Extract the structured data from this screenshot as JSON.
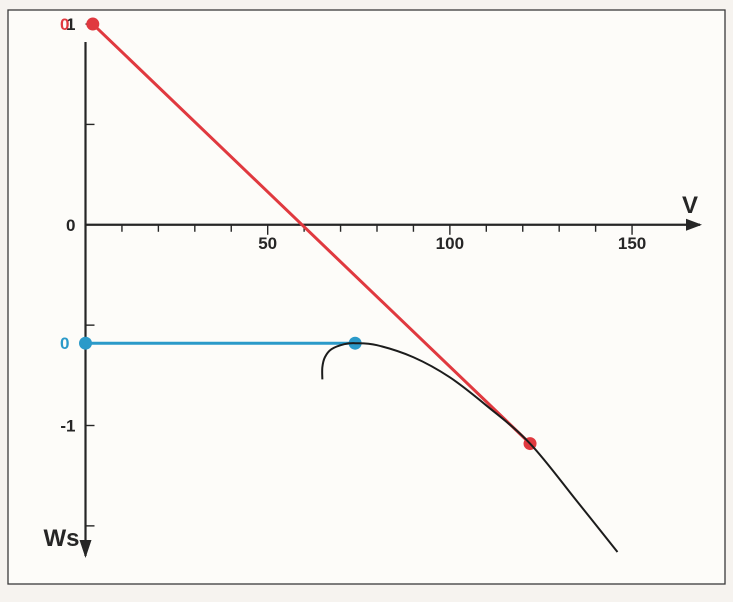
{
  "chart_data": {
    "type": "line",
    "xlabel": "V",
    "ylabel": "Ws",
    "xlim": [
      -7,
      167
    ],
    "ylim": [
      -1.68,
      1.07
    ],
    "x_ticks": [
      0,
      10,
      20,
      30,
      40,
      50,
      60,
      70,
      80,
      90,
      100,
      110,
      120,
      130,
      140,
      150
    ],
    "x_tick_labels": [
      {
        "x": 50,
        "label": "50"
      },
      {
        "x": 100,
        "label": "100"
      },
      {
        "x": 150,
        "label": "150"
      }
    ],
    "y_ticks": [
      1,
      0.5,
      0,
      -0.5,
      -1,
      -1.5
    ],
    "y_tick_labels": [
      {
        "y": 1,
        "label": "1"
      },
      {
        "y": 0,
        "label": "0"
      },
      {
        "y": -1,
        "label": "-1"
      }
    ],
    "annotations": [
      {
        "label": "0",
        "x": 0,
        "y": 1,
        "color": "#e0393f"
      },
      {
        "label": "0",
        "x": 0,
        "y": -0.59,
        "color": "#2b9ac9"
      }
    ],
    "grid": false,
    "series": [
      {
        "color": "#e0393f",
        "style": "line",
        "x": [
          2,
          122
        ],
        "y": [
          1,
          -1.09
        ],
        "markers": [
          {
            "x": 2,
            "y": 1
          },
          {
            "x": 122,
            "y": -1.09
          }
        ]
      },
      {
        "color": "#2b9ac9",
        "style": "line",
        "x": [
          0,
          74
        ],
        "y": [
          -0.59,
          -0.59
        ],
        "markers": [
          {
            "x": 0,
            "y": -0.59
          },
          {
            "x": 74,
            "y": -0.59
          }
        ]
      },
      {
        "color": "#1c1c1c",
        "style": "curve",
        "x": [
          65,
          65,
          65.7,
          67.5,
          71,
          74,
          80,
          90,
          100,
          110,
          122,
          135,
          146
        ],
        "y": [
          -0.77,
          -0.71,
          -0.66,
          -0.62,
          -0.595,
          -0.59,
          -0.6,
          -0.66,
          -0.76,
          -0.9,
          -1.09,
          -1.38,
          -1.63
        ]
      }
    ]
  }
}
